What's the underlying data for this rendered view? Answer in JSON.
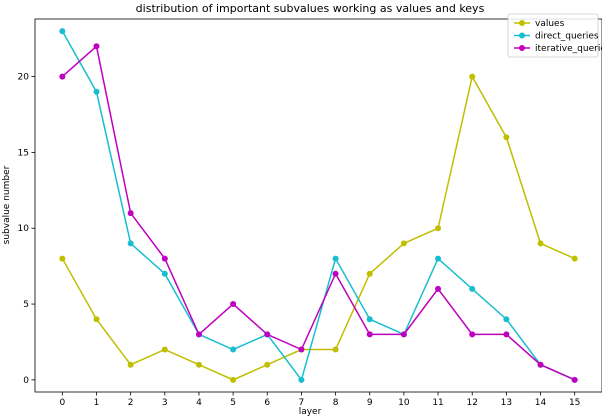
{
  "chart_data": {
    "type": "line",
    "title": "distribution of important subvalues working as values and keys",
    "xlabel": "layer",
    "ylabel": "subvalue number",
    "x": [
      0,
      1,
      2,
      3,
      4,
      5,
      6,
      7,
      8,
      9,
      10,
      11,
      12,
      13,
      14,
      15
    ],
    "xlim": [
      -0.8,
      15.8
    ],
    "ylim": [
      -0.8,
      23.8
    ],
    "yticks": [
      0,
      5,
      10,
      15,
      20
    ],
    "grid": false,
    "legend": "top-right",
    "series": [
      {
        "name": "values",
        "color": "#bfbf00",
        "values": [
          8,
          4,
          1,
          2,
          1,
          0,
          1,
          2,
          2,
          7,
          9,
          10,
          20,
          16,
          9,
          8
        ]
      },
      {
        "name": "direct_queries",
        "color": "#17becf",
        "values": [
          23,
          19,
          9,
          7,
          3,
          2,
          3,
          0,
          8,
          4,
          3,
          8,
          6,
          4,
          1,
          0
        ]
      },
      {
        "name": "iterative_queries",
        "color": "#bf00bf",
        "values": [
          20,
          22,
          11,
          8,
          3,
          5,
          3,
          2,
          7,
          3,
          3,
          6,
          3,
          3,
          1,
          0
        ]
      }
    ]
  }
}
